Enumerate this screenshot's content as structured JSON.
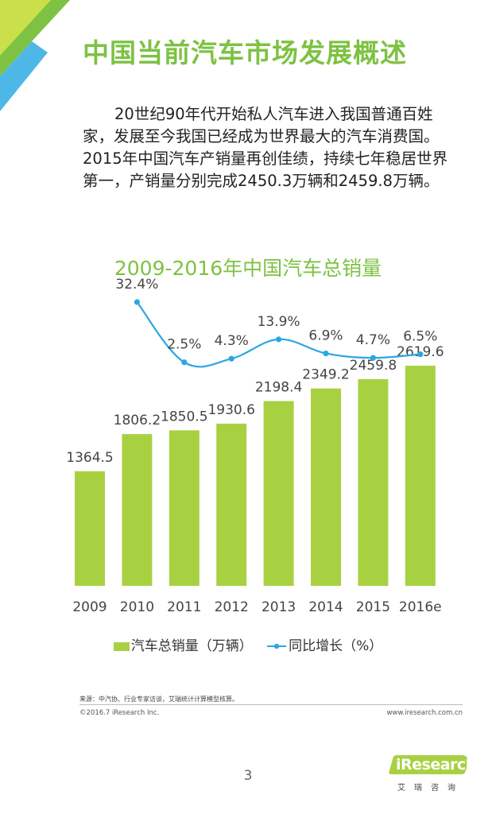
{
  "page": {
    "title": "中国当前汽车市场发展概述",
    "intro": "20世纪90年代开始私人汽车进入我国普通百姓家，发展至今我国已经成为世界最大的汽车消费国。2015年中国汽车产销量再创佳绩，持续七年稳居世界第一，产销量分别完成2450.3万辆和2459.8万辆。",
    "source": "来源：中汽协、行业专家访谈，艾瑞统计计算模型核算。",
    "copyright": "©2016.7 iResearch Inc.",
    "website": "www.iresearch.com.cn",
    "page_number": "3",
    "logo_text": "iResearch",
    "logo_sub": "艾瑞咨询"
  },
  "colors": {
    "title_green": "#7dc242",
    "bar_green": "#a8d142",
    "line_blue": "#29a8e0",
    "corner_lime": "#c9e04a",
    "corner_green": "#7dc242",
    "corner_blue": "#4db8e8"
  },
  "chart_data": {
    "type": "bar+line",
    "title": "2009-2016年中国汽车总销量",
    "categories": [
      "2009",
      "2010",
      "2011",
      "2012",
      "2013",
      "2014",
      "2015",
      "2016e"
    ],
    "series": [
      {
        "name": "汽车总销量（万辆）",
        "type": "bar",
        "values": [
          1364.5,
          1806.2,
          1850.5,
          1930.6,
          2198.4,
          2349.2,
          2459.8,
          2619.6
        ],
        "labels": [
          "1364.5",
          "1806.2",
          "1850.5",
          "1930.6",
          "2198.4",
          "2349.2",
          "2459.8",
          "2619.6"
        ]
      },
      {
        "name": "同比增长（%）",
        "type": "line",
        "values": [
          null,
          32.4,
          2.5,
          4.3,
          13.9,
          6.9,
          4.7,
          6.5
        ],
        "labels": [
          "",
          "32.4%",
          "2.5%",
          "4.3%",
          "13.9%",
          "6.9%",
          "4.7%",
          "6.5%"
        ]
      }
    ],
    "legend": [
      "汽车总销量（万辆）",
      "同比增长（%）"
    ],
    "legend_position": "bottom",
    "bar_ylim": [
      0,
      2800
    ],
    "line_ylim": [
      0,
      35
    ],
    "grid": false
  }
}
